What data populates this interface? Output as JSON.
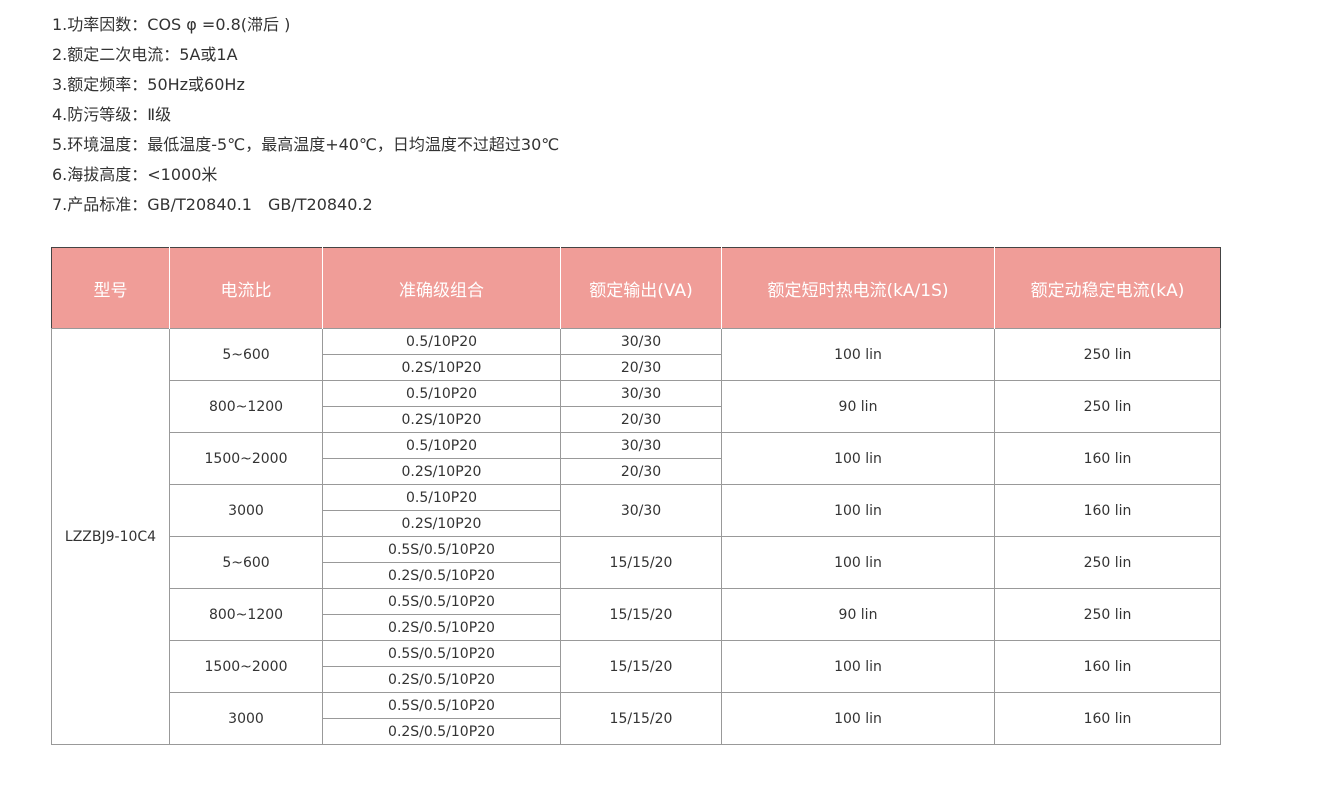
{
  "specs": [
    "1.功率因数：COS φ =0.8(滞后 )",
    "2.额定二次电流：5A或1A",
    "3.额定频率：50Hz或60Hz",
    "4.防污等级：Ⅱ级",
    "5.环境温度：最低温度-5℃，最高温度+40℃，日均温度不过超过30℃",
    "6.海拔高度：<1000米",
    "7.产品标准：GB/T20840.1　GB/T20840.2"
  ],
  "table": {
    "header": [
      "型号",
      "电流比",
      "准确级组合",
      "额定输出(VA)",
      "额定短时热电流(kA/1S)",
      "额定动稳定电流(kA)"
    ],
    "model": "LZZBJ9-10C4",
    "groups": [
      {
        "ratio": "5~600",
        "accuracy": [
          "0.5/10P20",
          "0.2S/10P20"
        ],
        "output": [
          "30/30",
          "20/30"
        ],
        "thermal": "100 lin",
        "dynamic": "250 lin"
      },
      {
        "ratio": "800~1200",
        "accuracy": [
          "0.5/10P20",
          "0.2S/10P20"
        ],
        "output": [
          "30/30",
          "20/30"
        ],
        "thermal": "90 lin",
        "dynamic": "250 lin"
      },
      {
        "ratio": "1500~2000",
        "accuracy": [
          "0.5/10P20",
          "0.2S/10P20"
        ],
        "output": [
          "30/30",
          "20/30"
        ],
        "thermal": "100 lin",
        "dynamic": "160 lin"
      },
      {
        "ratio": "3000",
        "accuracy": [
          "0.5/10P20",
          "0.2S/10P20"
        ],
        "output": [
          "30/30"
        ],
        "thermal": "100 lin",
        "dynamic": "160 lin"
      },
      {
        "ratio": "5~600",
        "accuracy": [
          "0.5S/0.5/10P20",
          "0.2S/0.5/10P20"
        ],
        "output": [
          "15/15/20"
        ],
        "thermal": "100 lin",
        "dynamic": "250 lin"
      },
      {
        "ratio": "800~1200",
        "accuracy": [
          "0.5S/0.5/10P20",
          "0.2S/0.5/10P20"
        ],
        "output": [
          "15/15/20"
        ],
        "thermal": "90 lin",
        "dynamic": "250 lin"
      },
      {
        "ratio": "1500~2000",
        "accuracy": [
          "0.5S/0.5/10P20",
          "0.2S/0.5/10P20"
        ],
        "output": [
          "15/15/20"
        ],
        "thermal": "100 lin",
        "dynamic": "160 lin"
      },
      {
        "ratio": "3000",
        "accuracy": [
          "0.5S/0.5/10P20",
          "0.2S/0.5/10P20"
        ],
        "output": [
          "15/15/20"
        ],
        "thermal": "100 lin",
        "dynamic": "160 lin"
      }
    ]
  }
}
